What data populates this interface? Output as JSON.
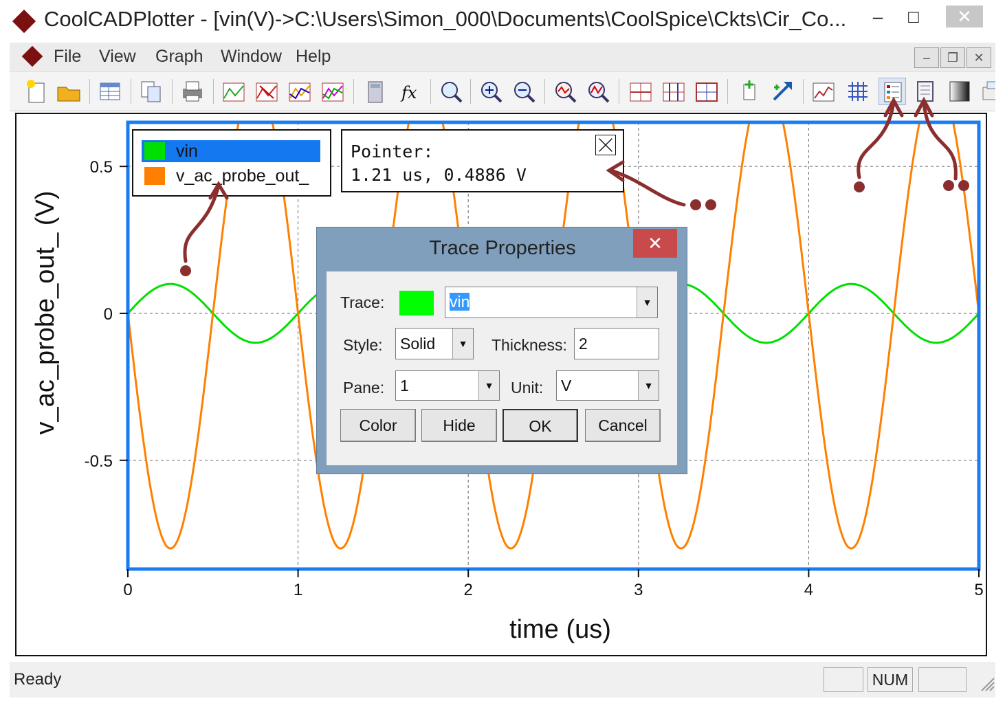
{
  "window": {
    "title": "CoolCADPlotter - [vin(V)->C:\\Users\\Simon_000\\Documents\\CoolSpice\\Ckts\\Cir_Co...",
    "minimize": "–",
    "maximize": "□",
    "close": "✕"
  },
  "menu": {
    "items": [
      "File",
      "View",
      "Graph",
      "Window",
      "Help"
    ],
    "mdi_minimize": "–",
    "mdi_restore": "❐",
    "mdi_close": "✕"
  },
  "toolbar": {
    "buttons": [
      "new-icon",
      "open-icon",
      "table-icon",
      "copy-icon",
      "print-icon",
      "trace-add-icon",
      "trace-remove-icon",
      "trace-color-icon",
      "trace-multi-icon",
      "calculator-icon",
      "function-icon",
      "zoom-fit-icon",
      "zoom-in-icon",
      "zoom-out-icon",
      "zoom-x-icon",
      "zoom-y-icon",
      "cursor-v-icon",
      "cursor-h-icon",
      "cursor-box-icon",
      "add-point-icon",
      "arrow-icon",
      "chart-icon",
      "grid-icon",
      "legend-icon",
      "pointer-box-icon",
      "background-icon",
      "export-icon"
    ]
  },
  "legend": {
    "entries": [
      {
        "label": "vin",
        "color": "#00e000"
      },
      {
        "label": "v_ac_probe_out_",
        "color": "#ff8000"
      }
    ]
  },
  "pointer": {
    "heading": "Pointer:",
    "value": "1.21 us, 0.4886 V",
    "close": "✕"
  },
  "chart_data": {
    "type": "line",
    "xlabel": "time (us)",
    "ylabel": "v_ac_probe_out_ (V)",
    "xlim": [
      0,
      5
    ],
    "ylim": [
      -0.87,
      0.65
    ],
    "xticks": [
      "0",
      "1",
      "2",
      "3",
      "4",
      "5"
    ],
    "yticks": [
      "0.5",
      "0",
      "-0.5"
    ],
    "grid": true,
    "series": [
      {
        "name": "vin",
        "color": "#00e000",
        "amplitude": 0.1,
        "frequency_mhz": 1,
        "phase_sign": 1
      },
      {
        "name": "v_ac_probe_out_",
        "color": "#ff8000",
        "amplitude": 0.8,
        "frequency_mhz": 1,
        "phase_sign": -1,
        "peaks": [
          0.65,
          0.65
        ]
      }
    ]
  },
  "dialog": {
    "title": "Trace Properties",
    "close": "✕",
    "trace_label": "Trace:",
    "trace_color": "#00ff00",
    "trace_value": "vin",
    "style_label": "Style:",
    "style_value": "Solid",
    "thickness_label": "Thickness:",
    "thickness_value": "2",
    "pane_label": "Pane:",
    "pane_value": "1",
    "unit_label": "Unit:",
    "unit_value": "V",
    "buttons": [
      "Color",
      "Hide",
      "OK",
      "Cancel"
    ]
  },
  "status": {
    "text": "Ready",
    "num": "NUM"
  },
  "annotation_color": "#8b2e2e"
}
